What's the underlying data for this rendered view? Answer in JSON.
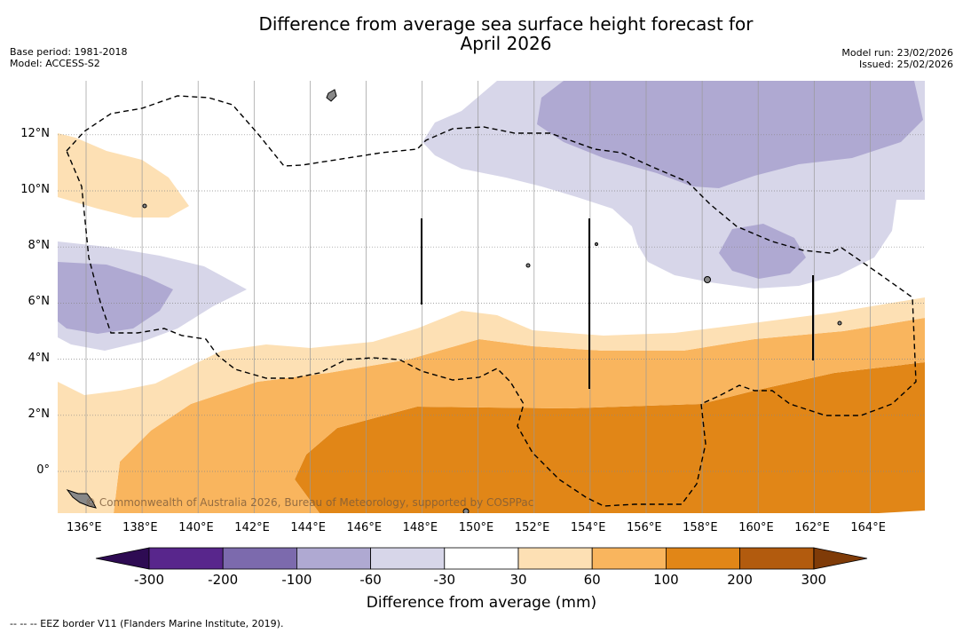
{
  "title_line1": "Difference from average sea surface height forecast for",
  "title_line2": "April 2026",
  "meta": {
    "base_period": "Base period: 1981-2018",
    "model": "Model: ACCESS-S2",
    "model_run": "Model run: 23/02/2026",
    "issued": "Issued: 25/02/2026"
  },
  "map": {
    "lon_range": [
      135,
      166
    ],
    "lat_range": [
      -1.5,
      14
    ],
    "lon_ticks": [
      "136°E",
      "138°E",
      "140°E",
      "142°E",
      "144°E",
      "146°E",
      "148°E",
      "150°E",
      "152°E",
      "154°E",
      "156°E",
      "158°E",
      "160°E",
      "162°E",
      "164°E"
    ],
    "lat_ticks": [
      "12°N",
      "10°N",
      "8°N",
      "6°N",
      "4°N",
      "2°N",
      "0°"
    ],
    "credit": "© Commonwealth of Australia 2026, Bureau of Meteorology, supported by COSPPac",
    "contour_colors": {
      "neg_60_30": "#d7d6e9",
      "neg_100_60": "#afa9d2",
      "pos_30_60": "#fde0b4",
      "pos_60_100": "#f9b55e",
      "pos_100_200": "#e18617",
      "land": "#888888",
      "eez_border": "#000000"
    }
  },
  "colorbar": {
    "labels": [
      "-300",
      "-200",
      "-100",
      "-60",
      "-30",
      "30",
      "60",
      "100",
      "200",
      "300"
    ],
    "colors": [
      "#58268c",
      "#7c6aad",
      "#afa9d2",
      "#d7d6e9",
      "#ffffff",
      "#fde0b4",
      "#f9b55e",
      "#e18617",
      "#b25b0e"
    ],
    "under_color": "#2e0b53",
    "over_color": "#7f3b08",
    "title": "Difference from average (mm)"
  },
  "footnote": "--  --  -- EEZ border V11 (Flanders Marine Institute, 2019)."
}
